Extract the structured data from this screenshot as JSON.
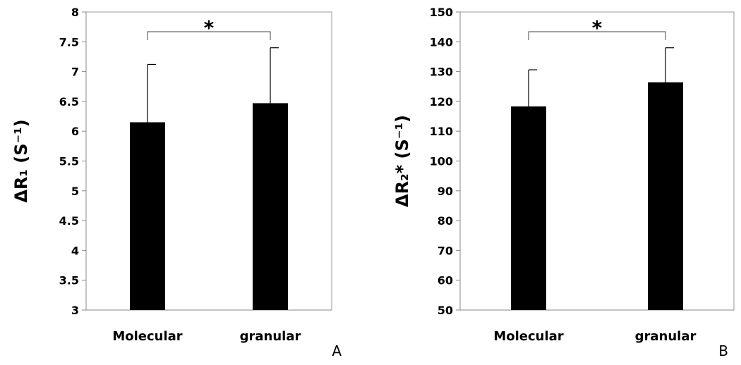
{
  "chart_data": [
    {
      "type": "bar",
      "panel_label": "A",
      "ylabel": "ΔR₁ (S⁻¹)",
      "categories": [
        "Molecular",
        "granular"
      ],
      "values": [
        6.15,
        6.47
      ],
      "error_upper": [
        0.97,
        0.93
      ],
      "ylim": [
        3,
        8
      ],
      "yticks": [
        "3",
        "3.5",
        "4",
        "4.5",
        "5",
        "5.5",
        "6",
        "6.5",
        "7",
        "7.5",
        "8"
      ],
      "ytick_values": [
        3,
        3.5,
        4,
        4.5,
        5,
        5.5,
        6,
        6.5,
        7,
        7.5,
        8
      ],
      "significance": {
        "between": [
          0,
          1
        ],
        "label": "*"
      },
      "grid": false,
      "bar_color": "#000000"
    },
    {
      "type": "bar",
      "panel_label": "B",
      "ylabel": "ΔR₂* (S⁻¹)",
      "categories": [
        "Molecular",
        "granular"
      ],
      "values": [
        118.3,
        126.4
      ],
      "error_upper": [
        12.3,
        11.6
      ],
      "ylim": [
        50,
        150
      ],
      "yticks": [
        "50",
        "60",
        "70",
        "80",
        "90",
        "100",
        "110",
        "120",
        "130",
        "140",
        "150"
      ],
      "ytick_values": [
        50,
        60,
        70,
        80,
        90,
        100,
        110,
        120,
        130,
        140,
        150
      ],
      "significance": {
        "between": [
          0,
          1
        ],
        "label": "*"
      },
      "grid": false,
      "bar_color": "#000000"
    }
  ]
}
